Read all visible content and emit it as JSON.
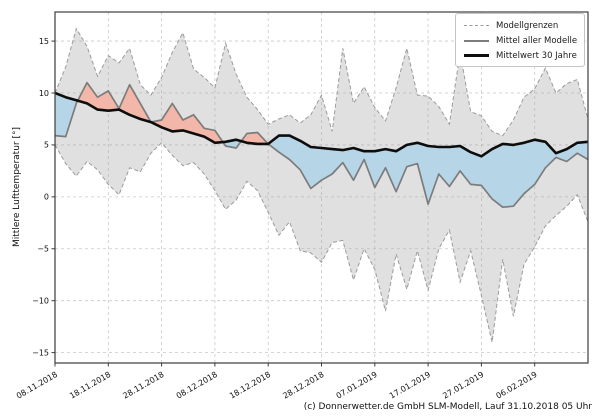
{
  "figure": {
    "y_axis_label": "Mittlere Lufttemperatur [°]",
    "caption": "(c) Donnerwetter.de GmbH SLM-Modell, Lauf 31.10.2018 05 Uhr",
    "legend": {
      "items": [
        {
          "label": "Modellgrenzen",
          "style": "dashed-gray"
        },
        {
          "label": "Mittel aller Modelle",
          "style": "solid-gray"
        },
        {
          "label": "Mittelwert 30 Jahre",
          "style": "solid-black"
        }
      ]
    }
  },
  "chart_data": {
    "type": "line",
    "title": "",
    "xlabel": "",
    "ylabel": "Mittlere Lufttemperatur [°]",
    "x_unit_days_since": "08.11.2018",
    "x_days": [
      0,
      2,
      4,
      6,
      8,
      10,
      12,
      14,
      16,
      18,
      20,
      22,
      24,
      26,
      28,
      30,
      32,
      34,
      36,
      38,
      40,
      42,
      44,
      46,
      48,
      50,
      52,
      54,
      56,
      58,
      60,
      62,
      64,
      66,
      68,
      70,
      72,
      74,
      76,
      78,
      80,
      82,
      84,
      86,
      88,
      90,
      92,
      94,
      96,
      98,
      100
    ],
    "x_tick_days": [
      0,
      10,
      20,
      30,
      40,
      50,
      60,
      70,
      80,
      90
    ],
    "x_tick_labels": [
      "08.11.2018",
      "18.11.2018",
      "28.11.2018",
      "08.12.2018",
      "18.12.2018",
      "28.12.2018",
      "07.01.2019",
      "17.01.2019",
      "27.01.2019",
      "06.02.2019"
    ],
    "y_tick_values": [
      15,
      10,
      5,
      0,
      -5,
      -10,
      -15
    ],
    "y_tick_labels": [
      "15",
      "10",
      "5",
      "0",
      "−5",
      "−10",
      "−15"
    ],
    "xlim_days": [
      0,
      100
    ],
    "ylim": [
      -16,
      17.8
    ],
    "grid": true,
    "legend_position": "upper right",
    "series": [
      {
        "name": "Modellgrenzen (obere Grenze)",
        "role": "upper_bound",
        "style": "dashed",
        "color": "#9b9b9b",
        "values": [
          10.0,
          12.5,
          16.2,
          14.5,
          11.6,
          13.6,
          12.9,
          14.3,
          10.8,
          9.8,
          11.5,
          13.9,
          15.8,
          12.3,
          11.5,
          10.5,
          14.8,
          11.8,
          9.6,
          8.4,
          7.0,
          7.5,
          7.9,
          7.1,
          7.9,
          9.8,
          6.3,
          14.3,
          9.0,
          10.6,
          8.6,
          7.3,
          10.5,
          14.3,
          9.8,
          9.7,
          8.7,
          7.0,
          13.9,
          8.2,
          7.8,
          6.3,
          5.9,
          7.4,
          9.6,
          10.4,
          12.4,
          10.0,
          10.9,
          11.3,
          7.5
        ]
      },
      {
        "name": "Modellgrenzen (untere Grenze)",
        "role": "lower_bound",
        "style": "dashed",
        "color": "#9b9b9b",
        "values": [
          5.0,
          3.2,
          2.0,
          3.4,
          2.6,
          1.2,
          0.2,
          2.8,
          2.4,
          4.2,
          5.2,
          4.0,
          3.0,
          3.3,
          2.2,
          0.6,
          -1.2,
          -0.3,
          1.5,
          0.6,
          -1.5,
          -3.7,
          -2.4,
          -5.2,
          -5.4,
          -6.3,
          -4.4,
          -4.2,
          -8.0,
          -5.0,
          -7.0,
          -11.0,
          -5.5,
          -8.9,
          -5.2,
          -9.0,
          -5.0,
          -3.2,
          -8.2,
          -5.2,
          -9.5,
          -14.0,
          -6.0,
          -11.5,
          -6.5,
          -4.8,
          -2.8,
          -1.8,
          -0.9,
          0.2,
          -2.4
        ]
      },
      {
        "name": "Mittel aller Modelle",
        "role": "model_mean",
        "style": "solid",
        "color": "#7c7c7c",
        "values": [
          5.9,
          5.8,
          9.0,
          11.0,
          9.6,
          10.2,
          8.5,
          10.8,
          9.0,
          7.2,
          7.4,
          9.0,
          7.4,
          7.9,
          6.6,
          6.4,
          4.9,
          4.7,
          6.1,
          6.2,
          5.1,
          4.3,
          3.6,
          2.6,
          0.8,
          1.6,
          2.2,
          3.3,
          1.6,
          3.6,
          0.9,
          2.8,
          0.5,
          2.9,
          3.2,
          -0.7,
          2.2,
          1.0,
          2.5,
          1.2,
          1.1,
          -0.2,
          -1.0,
          -0.9,
          0.3,
          1.2,
          2.8,
          3.8,
          3.4,
          4.2,
          3.6
        ]
      },
      {
        "name": "Mittelwert 30 Jahre",
        "role": "climate_mean_30y",
        "style": "solid-bold",
        "color": "#0d0d0d",
        "values": [
          10.0,
          9.6,
          9.3,
          9.0,
          8.4,
          8.3,
          8.4,
          7.9,
          7.5,
          7.2,
          6.7,
          6.3,
          6.4,
          6.1,
          5.8,
          5.2,
          5.3,
          5.5,
          5.2,
          5.1,
          5.1,
          5.9,
          5.9,
          5.4,
          4.8,
          4.7,
          4.6,
          4.5,
          4.7,
          4.4,
          4.4,
          4.6,
          4.4,
          5.0,
          5.2,
          4.9,
          4.8,
          4.8,
          4.9,
          4.3,
          3.9,
          4.6,
          5.1,
          5.0,
          5.2,
          5.5,
          5.3,
          4.2,
          4.6,
          5.2,
          5.3
        ]
      }
    ],
    "fills": {
      "band_color": "rgba(165,165,165,0.35)",
      "warmer_than_climate_color": "#f3b7a9",
      "colder_than_climate_color": "#b6d6e8"
    }
  }
}
